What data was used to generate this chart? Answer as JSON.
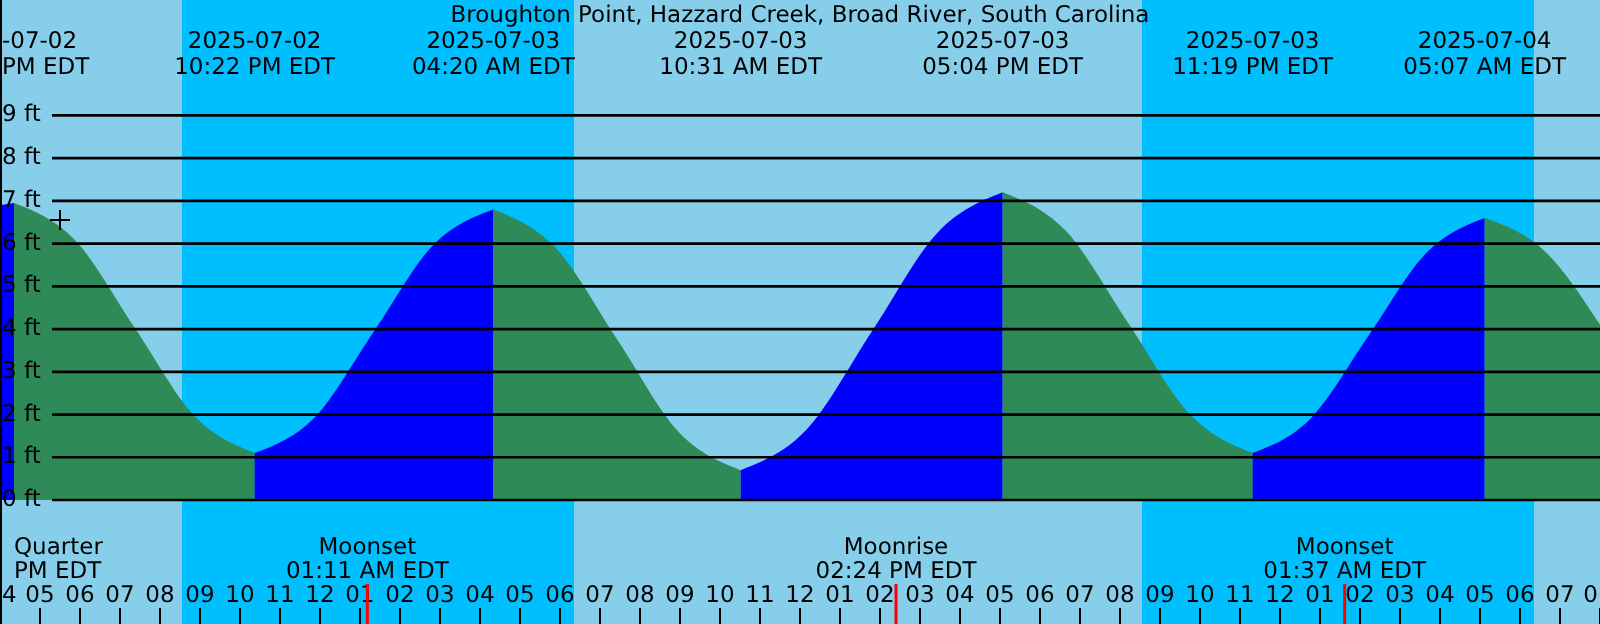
{
  "chart_data": {
    "type": "area",
    "title": "Broughton Point, Hazzard Creek, Broad River, South Carolina",
    "series": [
      {
        "type": "area",
        "color": "#0000ff",
        "x": [
          "2025-07-02T16:00",
          "2025-07-02T16:21"
        ],
        "values": [
          6.9,
          6.95
        ]
      },
      {
        "type": "area",
        "color": "#2e8b57",
        "x": [
          "2025-07-02T16:21",
          "2025-07-02T17:52",
          "2025-07-02T19:22",
          "2025-07-02T20:52",
          "2025-07-02T22:22"
        ],
        "values": [
          6.95,
          6.09,
          4.03,
          1.96,
          1.1
        ]
      },
      {
        "type": "area",
        "color": "#0000ff",
        "x": [
          "2025-07-02T22:22",
          "2025-07-02T23:52",
          "2025-07-03T01:21",
          "2025-07-03T02:50",
          "2025-07-03T04:20"
        ],
        "values": [
          1.1,
          1.93,
          3.95,
          5.97,
          6.8
        ]
      },
      {
        "type": "area",
        "color": "#2e8b57",
        "x": [
          "2025-07-03T04:20",
          "2025-07-03T05:53",
          "2025-07-03T07:26",
          "2025-07-03T08:58",
          "2025-07-03T10:31"
        ],
        "values": [
          6.8,
          5.91,
          3.75,
          1.59,
          0.7
        ]
      },
      {
        "type": "area",
        "color": "#0000ff",
        "x": [
          "2025-07-03T10:31",
          "2025-07-03T12:10",
          "2025-07-03T13:48",
          "2025-07-03T15:26",
          "2025-07-03T17:04"
        ],
        "values": [
          0.7,
          1.65,
          3.95,
          6.25,
          7.2
        ]
      },
      {
        "type": "area",
        "color": "#2e8b57",
        "x": [
          "2025-07-03T17:04",
          "2025-07-03T18:38",
          "2025-07-03T20:12",
          "2025-07-03T21:46",
          "2025-07-03T23:19"
        ],
        "values": [
          7.2,
          6.31,
          4.15,
          1.99,
          1.1
        ]
      },
      {
        "type": "area",
        "color": "#0000ff",
        "x": [
          "2025-07-03T23:19",
          "2025-07-04T00:46",
          "2025-07-04T02:13",
          "2025-07-04T03:40",
          "2025-07-04T05:07"
        ],
        "values": [
          1.1,
          1.91,
          3.85,
          5.79,
          6.6
        ]
      },
      {
        "type": "area",
        "color": "#2e8b57",
        "x": [
          "2025-07-04T05:07",
          "2025-07-04T06:40",
          "2025-07-04T08:00"
        ],
        "values": [
          6.6,
          5.78,
          4.1
        ]
      }
    ],
    "xlim": [
      "2025-07-02T16:00",
      "2025-07-04T08:00"
    ],
    "ylim": [
      -2.9,
      11.7
    ],
    "yticks": [
      {
        "value": 0,
        "label": "0 ft"
      },
      {
        "value": 1,
        "label": "1 ft"
      },
      {
        "value": 2,
        "label": "2 ft"
      },
      {
        "value": 3,
        "label": "3 ft"
      },
      {
        "value": 4,
        "label": "4 ft"
      },
      {
        "value": 5,
        "label": "5 ft"
      },
      {
        "value": 6,
        "label": "6 ft"
      },
      {
        "value": 7,
        "label": "7 ft"
      },
      {
        "value": 8,
        "label": "8 ft"
      },
      {
        "value": 9,
        "label": "9 ft"
      }
    ],
    "xticks": [
      {
        "value": "2025-07-02T16:00",
        "label": "4"
      },
      {
        "value": "2025-07-02T17:00",
        "label": "05"
      },
      {
        "value": "2025-07-02T18:00",
        "label": "06"
      },
      {
        "value": "2025-07-02T19:00",
        "label": "07"
      },
      {
        "value": "2025-07-02T20:00",
        "label": "08"
      },
      {
        "value": "2025-07-02T21:00",
        "label": "09"
      },
      {
        "value": "2025-07-02T22:00",
        "label": "10"
      },
      {
        "value": "2025-07-02T23:00",
        "label": "11"
      },
      {
        "value": "2025-07-03T00:00",
        "label": "12"
      },
      {
        "value": "2025-07-03T01:00",
        "label": "01"
      },
      {
        "value": "2025-07-03T02:00",
        "label": "02"
      },
      {
        "value": "2025-07-03T03:00",
        "label": "03"
      },
      {
        "value": "2025-07-03T04:00",
        "label": "04"
      },
      {
        "value": "2025-07-03T05:00",
        "label": "05"
      },
      {
        "value": "2025-07-03T06:00",
        "label": "06"
      },
      {
        "value": "2025-07-03T07:00",
        "label": "07"
      },
      {
        "value": "2025-07-03T08:00",
        "label": "08"
      },
      {
        "value": "2025-07-03T09:00",
        "label": "09"
      },
      {
        "value": "2025-07-03T10:00",
        "label": "10"
      },
      {
        "value": "2025-07-03T11:00",
        "label": "11"
      },
      {
        "value": "2025-07-03T12:00",
        "label": "12"
      },
      {
        "value": "2025-07-03T13:00",
        "label": "01"
      },
      {
        "value": "2025-07-03T14:00",
        "label": "02"
      },
      {
        "value": "2025-07-03T15:00",
        "label": "03"
      },
      {
        "value": "2025-07-03T16:00",
        "label": "04"
      },
      {
        "value": "2025-07-03T17:00",
        "label": "05"
      },
      {
        "value": "2025-07-03T18:00",
        "label": "06"
      },
      {
        "value": "2025-07-03T19:00",
        "label": "07"
      },
      {
        "value": "2025-07-03T20:00",
        "label": "08"
      },
      {
        "value": "2025-07-03T21:00",
        "label": "09"
      },
      {
        "value": "2025-07-03T22:00",
        "label": "10"
      },
      {
        "value": "2025-07-03T23:00",
        "label": "11"
      },
      {
        "value": "2025-07-04T00:00",
        "label": "12"
      },
      {
        "value": "2025-07-04T01:00",
        "label": "01"
      },
      {
        "value": "2025-07-04T02:00",
        "label": "02"
      },
      {
        "value": "2025-07-04T03:00",
        "label": "03"
      },
      {
        "value": "2025-07-04T04:00",
        "label": "04"
      },
      {
        "value": "2025-07-04T05:00",
        "label": "05"
      },
      {
        "value": "2025-07-04T06:00",
        "label": "06"
      },
      {
        "value": "2025-07-04T07:00",
        "label": "07"
      },
      {
        "value": "2025-07-04T08:00",
        "label": "0"
      }
    ],
    "grid": "y",
    "bands": [
      {
        "axis": "x",
        "from": "2025-07-02T20:33",
        "to": "2025-07-03T06:21",
        "color": "#00bfff"
      },
      {
        "axis": "x",
        "from": "2025-07-03T20:33",
        "to": "2025-07-04T06:21",
        "color": "#00bfff"
      }
    ],
    "ref_lines": [
      {
        "axis": "x",
        "value": "2025-07-03T01:11",
        "label": "Moonset 01:11 AM EDT",
        "color": "#ff0000"
      },
      {
        "axis": "x",
        "value": "2025-07-03T14:24",
        "label": "Moonrise 02:24 PM EDT",
        "color": "#ff0000"
      },
      {
        "axis": "x",
        "value": "2025-07-04T01:37",
        "label": "Moonset 01:37 AM EDT",
        "color": "#ff0000"
      }
    ],
    "annotations": [
      "-07-02 PM EDT",
      "2025-07-02 10:22 PM EDT",
      "2025-07-03 04:20 AM EDT",
      "2025-07-03 10:31 AM EDT",
      "2025-07-03 05:04 PM EDT",
      "2025-07-03 11:19 PM EDT",
      "2025-07-04 05:07 AM EDT",
      "Quarter PM EDT"
    ]
  }
}
